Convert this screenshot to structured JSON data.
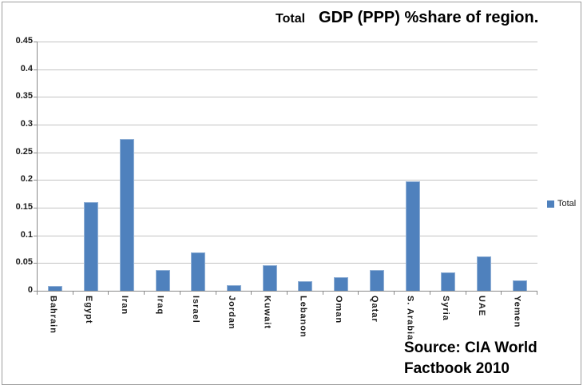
{
  "title": {
    "prefix": "Total",
    "main": "GDP (PPP) %share of region."
  },
  "legend": {
    "label": "Total"
  },
  "source": {
    "line1": "Source: CIA World",
    "line2": "Factbook 2010"
  },
  "colors": {
    "bar": "#4f81bd",
    "bar_border": "#92b1d6",
    "gridline": "#c3c3c3",
    "axis": "#8a8a8a",
    "frame_border": "#9d9d9d"
  },
  "chart_data": {
    "type": "bar",
    "title": "Total GDP (PPP) %share of region.",
    "categories": [
      "Bahrain",
      "Egypt",
      "Iran",
      "Iraq",
      "Israel",
      "Jordan",
      "Kuwait",
      "Lebanon",
      "Oman",
      "Qatar",
      "S. Arabia",
      "Syria",
      "UAE",
      "Yemen"
    ],
    "series": [
      {
        "name": "Total",
        "values": [
          0.009,
          0.16,
          0.274,
          0.037,
          0.069,
          0.01,
          0.046,
          0.017,
          0.024,
          0.037,
          0.197,
          0.033,
          0.062,
          0.019
        ]
      }
    ],
    "xlabel": "",
    "ylabel": "",
    "ylim": [
      0,
      0.45
    ],
    "ytick_step": 0.05,
    "ytick_labels": [
      "0.45",
      "0.4",
      "0.35",
      "0.3",
      "0.25",
      "0.2",
      "0.15",
      "0.1",
      "0.05",
      "0"
    ],
    "grid": true,
    "legend_position": "right",
    "annotation": "Source: CIA World Factbook 2010"
  }
}
